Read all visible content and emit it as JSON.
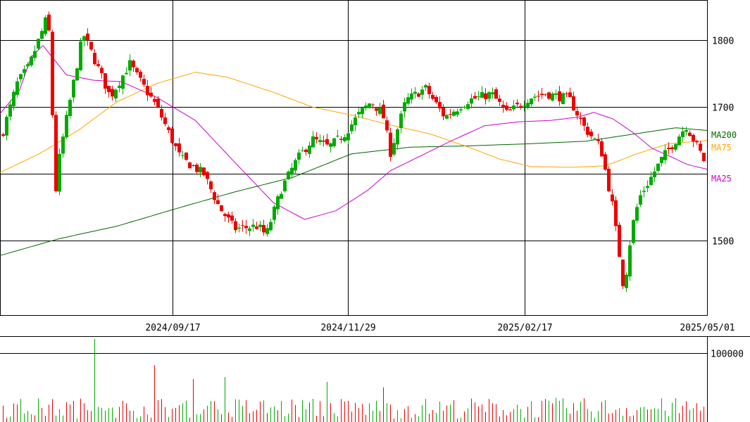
{
  "chart_data": [
    {
      "type": "candlestick",
      "yaxis": {
        "ticks": [
          1500,
          1600,
          1700,
          1800
        ],
        "tick_labels": [
          "1500",
          "",
          "1700",
          "1800"
        ],
        "ylim": [
          1389,
          1860
        ]
      },
      "xaxis": {
        "tick_labels": [
          "2024/09/17",
          "2024/11/29",
          "2025/02/17",
          "2025/05/01"
        ]
      },
      "legend": [
        "MA200",
        "MA75",
        "MA25"
      ],
      "colors": {
        "up": "#00aa00",
        "down": "#ee0000",
        "ma25": "#cc00cc",
        "ma75": "#ffa500",
        "ma200": "#006600",
        "grid": "#000000"
      },
      "n_candles": 200,
      "anchors": [
        [
          0,
          1655
        ],
        [
          8,
          1735
        ],
        [
          14,
          1760
        ],
        [
          22,
          1822
        ],
        [
          24,
          1842
        ],
        [
          26,
          1705
        ],
        [
          28,
          1575
        ],
        [
          30,
          1628
        ],
        [
          34,
          1690
        ],
        [
          42,
          1810
        ],
        [
          48,
          1770
        ],
        [
          56,
          1715
        ],
        [
          62,
          1745
        ],
        [
          66,
          1765
        ],
        [
          70,
          1745
        ],
        [
          80,
          1700
        ],
        [
          92,
          1624
        ],
        [
          104,
          1600
        ],
        [
          112,
          1550
        ],
        [
          120,
          1518
        ],
        [
          132,
          1522
        ],
        [
          136,
          1508
        ],
        [
          144,
          1578
        ],
        [
          152,
          1622
        ],
        [
          160,
          1652
        ],
        [
          168,
          1640
        ],
        [
          176,
          1658
        ],
        [
          184,
          1690
        ],
        [
          190,
          1708
        ],
        [
          196,
          1690
        ],
        [
          200,
          1632
        ],
        [
          208,
          1710
        ],
        [
          218,
          1728
        ],
        [
          228,
          1685
        ],
        [
          240,
          1710
        ],
        [
          252,
          1720
        ],
        [
          260,
          1690
        ],
        [
          272,
          1715
        ],
        [
          280,
          1720
        ],
        [
          292,
          1712
        ],
        [
          300,
          1668
        ],
        [
          308,
          1640
        ],
        [
          314,
          1555
        ],
        [
          318,
          1472
        ],
        [
          320,
          1425
        ],
        [
          324,
          1518
        ],
        [
          328,
          1565
        ],
        [
          334,
          1595
        ],
        [
          340,
          1625
        ],
        [
          346,
          1648
        ],
        [
          352,
          1672
        ],
        [
          356,
          1650
        ],
        [
          360,
          1628
        ],
        [
          362,
          1615
        ]
      ],
      "ma25_anchors": [
        [
          0,
          1690
        ],
        [
          10,
          1725
        ],
        [
          16,
          1775
        ],
        [
          22,
          1792
        ],
        [
          34,
          1748
        ],
        [
          48,
          1740
        ],
        [
          62,
          1738
        ],
        [
          80,
          1715
        ],
        [
          100,
          1680
        ],
        [
          120,
          1618
        ],
        [
          140,
          1557
        ],
        [
          156,
          1532
        ],
        [
          172,
          1545
        ],
        [
          188,
          1575
        ],
        [
          200,
          1605
        ],
        [
          214,
          1625
        ],
        [
          230,
          1648
        ],
        [
          248,
          1672
        ],
        [
          266,
          1678
        ],
        [
          282,
          1680
        ],
        [
          296,
          1685
        ],
        [
          304,
          1692
        ],
        [
          314,
          1682
        ],
        [
          324,
          1662
        ],
        [
          334,
          1638
        ],
        [
          344,
          1625
        ],
        [
          352,
          1614
        ],
        [
          362,
          1607
        ]
      ],
      "ma75_anchors": [
        [
          0,
          1602
        ],
        [
          20,
          1630
        ],
        [
          40,
          1665
        ],
        [
          60,
          1708
        ],
        [
          80,
          1735
        ],
        [
          100,
          1752
        ],
        [
          116,
          1745
        ],
        [
          140,
          1722
        ],
        [
          160,
          1700
        ],
        [
          180,
          1688
        ],
        [
          200,
          1673
        ],
        [
          220,
          1660
        ],
        [
          240,
          1640
        ],
        [
          256,
          1622
        ],
        [
          272,
          1611
        ],
        [
          292,
          1610
        ],
        [
          310,
          1612
        ],
        [
          326,
          1630
        ],
        [
          342,
          1645
        ],
        [
          354,
          1648
        ],
        [
          362,
          1650
        ]
      ],
      "ma200_anchors": [
        [
          0,
          1478
        ],
        [
          30,
          1503
        ],
        [
          60,
          1522
        ],
        [
          90,
          1548
        ],
        [
          120,
          1573
        ],
        [
          150,
          1595
        ],
        [
          180,
          1630
        ],
        [
          210,
          1640
        ],
        [
          240,
          1642
        ],
        [
          270,
          1645
        ],
        [
          300,
          1649
        ],
        [
          330,
          1662
        ],
        [
          346,
          1669
        ],
        [
          362,
          1665
        ]
      ]
    },
    {
      "type": "bar",
      "yaxis": {
        "ticks": [
          100000
        ],
        "tick_labels": [
          "100000"
        ],
        "ylim": [
          0,
          123000
        ]
      },
      "n_bars": 200,
      "spikes": [
        [
          26,
          120000
        ],
        [
          43,
          82000
        ],
        [
          54,
          62000
        ],
        [
          63,
          65000
        ],
        [
          92,
          58000
        ],
        [
          108,
          50000
        ]
      ]
    }
  ]
}
